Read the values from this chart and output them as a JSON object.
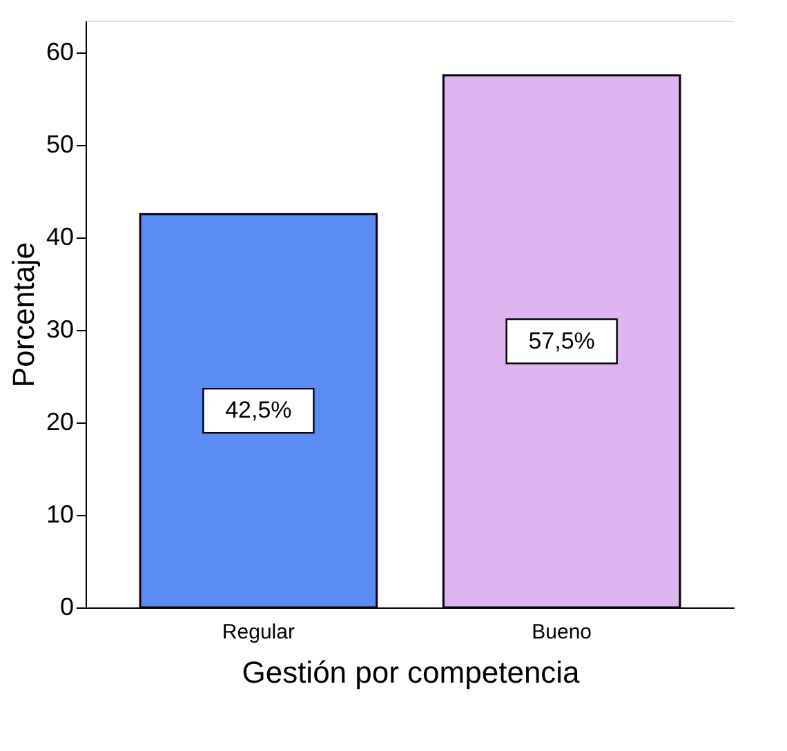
{
  "chart_data": {
    "type": "bar",
    "xlabel": "Gestión por competencia",
    "ylabel": "Porcentaje",
    "categories": [
      "Regular",
      "Bueno"
    ],
    "values": [
      42.5,
      57.5
    ],
    "colors": [
      "#5b8cf5",
      "#deb4f0"
    ],
    "value_labels": [
      "42,5%",
      "57,5%"
    ],
    "ylim": [
      0,
      63.4
    ],
    "yticks": [
      0,
      10,
      20,
      30,
      40,
      50,
      60
    ],
    "grid": false,
    "legend": false
  }
}
